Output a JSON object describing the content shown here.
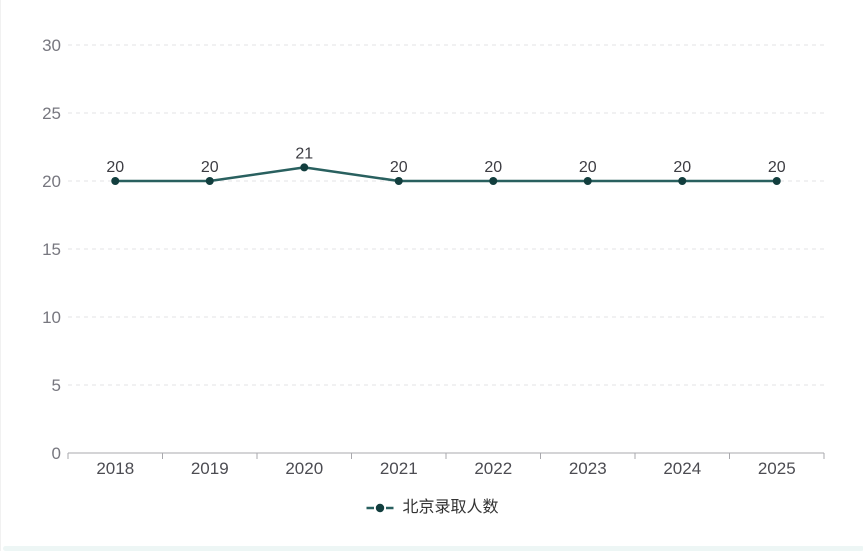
{
  "chart_data": {
    "type": "line",
    "categories": [
      "2018",
      "2019",
      "2020",
      "2021",
      "2022",
      "2023",
      "2024",
      "2025"
    ],
    "series": [
      {
        "name": "北京录取人数",
        "values": [
          20,
          20,
          21,
          20,
          20,
          20,
          20,
          20
        ],
        "color": "#29605f",
        "marker_color": "#123e3e",
        "marker": "circle",
        "line_style": "solid"
      }
    ],
    "title": "",
    "xlabel": "",
    "ylabel": "",
    "ylim": [
      0,
      30
    ],
    "yticks": [
      0,
      5,
      10,
      15,
      20,
      25,
      30
    ],
    "grid": "horizontal-dashed",
    "legend_position": "bottom-center",
    "colors": {
      "grid_line": "#e3e3e6",
      "axis_line": "#a9a9ad",
      "y_tick_label": "#77777f",
      "x_tick_label": "#4c4c52",
      "data_label": "#3c3c42",
      "legend_text": "#333333",
      "card_edge": "#edf6f5"
    }
  },
  "legend": {
    "items": [
      {
        "label": "北京录取人数"
      }
    ]
  }
}
